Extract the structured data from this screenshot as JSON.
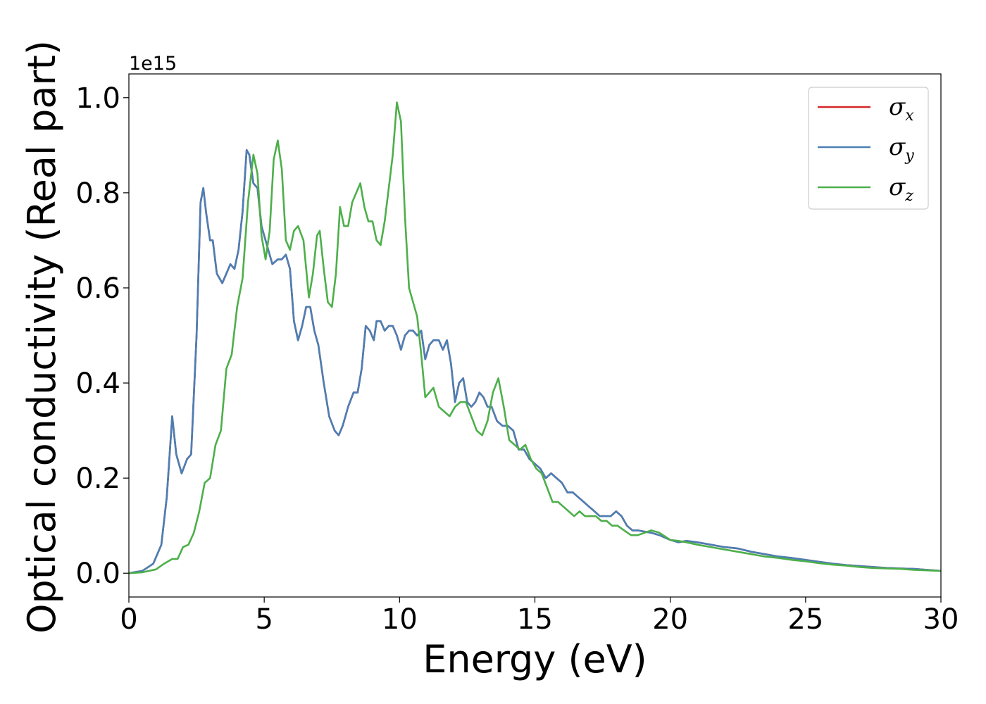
{
  "chart_data": {
    "type": "line",
    "xlabel": "Energy (eV)",
    "ylabel": "Optical conductivity (Real part)",
    "y_offset_label": "1e15",
    "xlim": [
      0,
      30
    ],
    "ylim": [
      -0.05,
      1.05
    ],
    "xticks": [
      0,
      5,
      10,
      15,
      20,
      25,
      30
    ],
    "xtick_labels": [
      "0",
      "5",
      "10",
      "15",
      "20",
      "25",
      "30"
    ],
    "yticks": [
      0.0,
      0.2,
      0.4,
      0.6,
      0.8,
      1.0
    ],
    "ytick_labels": [
      "0.0",
      "0.2",
      "0.4",
      "0.6",
      "0.8",
      "1.0"
    ],
    "grid": false,
    "legend_position": "top-right",
    "series": [
      {
        "name": "σ",
        "subscript": "x",
        "color": "#d62728",
        "x": [
          0,
          0.5,
          0.9,
          1.2,
          1.4,
          1.6,
          1.75,
          1.95,
          2.15,
          2.3,
          2.5,
          2.65,
          2.75,
          2.85,
          3.0,
          3.1,
          3.25,
          3.45,
          3.6,
          3.75,
          3.9,
          4.05,
          4.2,
          4.35,
          4.45,
          4.6,
          4.75,
          4.9,
          5.1,
          5.3,
          5.5,
          5.65,
          5.8,
          5.95,
          6.1,
          6.25,
          6.4,
          6.55,
          6.7,
          6.85,
          7.0,
          7.2,
          7.4,
          7.6,
          7.75,
          7.9,
          8.1,
          8.3,
          8.45,
          8.6,
          8.75,
          8.9,
          9.05,
          9.15,
          9.3,
          9.45,
          9.6,
          9.75,
          9.9,
          10.05,
          10.2,
          10.35,
          10.5,
          10.65,
          10.8,
          10.95,
          11.1,
          11.25,
          11.45,
          11.6,
          11.75,
          11.9,
          12.05,
          12.2,
          12.35,
          12.5,
          12.65,
          12.8,
          12.95,
          13.1,
          13.25,
          13.4,
          13.6,
          13.8,
          14.0,
          14.2,
          14.4,
          14.6,
          14.8,
          15.0,
          15.2,
          15.4,
          15.6,
          15.8,
          16.0,
          16.2,
          16.4,
          16.6,
          16.8,
          17.0,
          17.2,
          17.4,
          17.6,
          17.8,
          18.0,
          18.2,
          18.4,
          18.6,
          18.8,
          19.0,
          19.3,
          19.6,
          20.0,
          20.3,
          20.6,
          21.0,
          21.5,
          22.0,
          22.5,
          23.0,
          23.5,
          24.0,
          24.5,
          25.0,
          25.5,
          26.0,
          26.5,
          27.0,
          27.5,
          28.0,
          28.5,
          29.0,
          29.5,
          30.0
        ],
        "y": [
          0.0,
          0.005,
          0.02,
          0.06,
          0.16,
          0.33,
          0.25,
          0.21,
          0.24,
          0.25,
          0.5,
          0.78,
          0.81,
          0.76,
          0.7,
          0.7,
          0.63,
          0.61,
          0.63,
          0.65,
          0.64,
          0.68,
          0.76,
          0.89,
          0.88,
          0.82,
          0.81,
          0.73,
          0.69,
          0.65,
          0.66,
          0.66,
          0.67,
          0.64,
          0.53,
          0.49,
          0.52,
          0.56,
          0.56,
          0.51,
          0.48,
          0.4,
          0.33,
          0.3,
          0.29,
          0.31,
          0.35,
          0.38,
          0.38,
          0.43,
          0.52,
          0.51,
          0.49,
          0.53,
          0.53,
          0.51,
          0.52,
          0.52,
          0.5,
          0.47,
          0.5,
          0.51,
          0.51,
          0.5,
          0.51,
          0.45,
          0.48,
          0.49,
          0.49,
          0.47,
          0.49,
          0.44,
          0.36,
          0.4,
          0.41,
          0.36,
          0.35,
          0.36,
          0.38,
          0.37,
          0.35,
          0.35,
          0.32,
          0.31,
          0.31,
          0.3,
          0.26,
          0.26,
          0.24,
          0.23,
          0.22,
          0.2,
          0.21,
          0.2,
          0.19,
          0.17,
          0.17,
          0.16,
          0.15,
          0.14,
          0.13,
          0.12,
          0.12,
          0.12,
          0.13,
          0.12,
          0.1,
          0.09,
          0.09,
          0.088,
          0.085,
          0.08,
          0.07,
          0.065,
          0.068,
          0.065,
          0.06,
          0.055,
          0.052,
          0.045,
          0.04,
          0.035,
          0.032,
          0.028,
          0.024,
          0.02,
          0.017,
          0.015,
          0.013,
          0.011,
          0.01,
          0.009,
          0.007,
          0.005
        ]
      },
      {
        "name": "σ",
        "subscript": "y",
        "color": "#4a7fb5",
        "x": [
          0,
          0.5,
          0.9,
          1.2,
          1.4,
          1.6,
          1.75,
          1.95,
          2.15,
          2.3,
          2.5,
          2.65,
          2.75,
          2.85,
          3.0,
          3.1,
          3.25,
          3.45,
          3.6,
          3.75,
          3.9,
          4.05,
          4.2,
          4.35,
          4.45,
          4.6,
          4.75,
          4.9,
          5.1,
          5.3,
          5.5,
          5.65,
          5.8,
          5.95,
          6.1,
          6.25,
          6.4,
          6.55,
          6.7,
          6.85,
          7.0,
          7.2,
          7.4,
          7.6,
          7.75,
          7.9,
          8.1,
          8.3,
          8.45,
          8.6,
          8.75,
          8.9,
          9.05,
          9.15,
          9.3,
          9.45,
          9.6,
          9.75,
          9.9,
          10.05,
          10.2,
          10.35,
          10.5,
          10.65,
          10.8,
          10.95,
          11.1,
          11.25,
          11.45,
          11.6,
          11.75,
          11.9,
          12.05,
          12.2,
          12.35,
          12.5,
          12.65,
          12.8,
          12.95,
          13.1,
          13.25,
          13.4,
          13.6,
          13.8,
          14.0,
          14.2,
          14.4,
          14.6,
          14.8,
          15.0,
          15.2,
          15.4,
          15.6,
          15.8,
          16.0,
          16.2,
          16.4,
          16.6,
          16.8,
          17.0,
          17.2,
          17.4,
          17.6,
          17.8,
          18.0,
          18.2,
          18.4,
          18.6,
          18.8,
          19.0,
          19.3,
          19.6,
          20.0,
          20.3,
          20.6,
          21.0,
          21.5,
          22.0,
          22.5,
          23.0,
          23.5,
          24.0,
          24.5,
          25.0,
          25.5,
          26.0,
          26.5,
          27.0,
          27.5,
          28.0,
          28.5,
          29.0,
          29.5,
          30.0
        ],
        "y": [
          0.0,
          0.005,
          0.02,
          0.06,
          0.16,
          0.33,
          0.25,
          0.21,
          0.24,
          0.25,
          0.5,
          0.78,
          0.81,
          0.76,
          0.7,
          0.7,
          0.63,
          0.61,
          0.63,
          0.65,
          0.64,
          0.68,
          0.76,
          0.89,
          0.88,
          0.82,
          0.81,
          0.73,
          0.69,
          0.65,
          0.66,
          0.66,
          0.67,
          0.64,
          0.53,
          0.49,
          0.52,
          0.56,
          0.56,
          0.51,
          0.48,
          0.4,
          0.33,
          0.3,
          0.29,
          0.31,
          0.35,
          0.38,
          0.38,
          0.43,
          0.52,
          0.51,
          0.49,
          0.53,
          0.53,
          0.51,
          0.52,
          0.52,
          0.5,
          0.47,
          0.5,
          0.51,
          0.51,
          0.5,
          0.51,
          0.45,
          0.48,
          0.49,
          0.49,
          0.47,
          0.49,
          0.44,
          0.36,
          0.4,
          0.41,
          0.36,
          0.35,
          0.36,
          0.38,
          0.37,
          0.35,
          0.35,
          0.32,
          0.31,
          0.31,
          0.3,
          0.26,
          0.26,
          0.24,
          0.23,
          0.22,
          0.2,
          0.21,
          0.2,
          0.19,
          0.17,
          0.17,
          0.16,
          0.15,
          0.14,
          0.13,
          0.12,
          0.12,
          0.12,
          0.13,
          0.12,
          0.1,
          0.09,
          0.09,
          0.088,
          0.085,
          0.08,
          0.07,
          0.065,
          0.068,
          0.065,
          0.06,
          0.055,
          0.052,
          0.045,
          0.04,
          0.035,
          0.032,
          0.028,
          0.024,
          0.02,
          0.017,
          0.015,
          0.013,
          0.011,
          0.01,
          0.009,
          0.007,
          0.005
        ]
      },
      {
        "name": "σ",
        "subscript": "z",
        "color": "#4daf4a",
        "x": [
          0,
          0.5,
          1.0,
          1.3,
          1.6,
          1.8,
          2.0,
          2.2,
          2.4,
          2.6,
          2.8,
          3.0,
          3.2,
          3.4,
          3.6,
          3.8,
          4.0,
          4.2,
          4.4,
          4.6,
          4.75,
          4.9,
          5.05,
          5.2,
          5.35,
          5.5,
          5.65,
          5.8,
          5.95,
          6.1,
          6.25,
          6.45,
          6.65,
          6.8,
          6.95,
          7.05,
          7.2,
          7.35,
          7.5,
          7.65,
          7.8,
          7.95,
          8.1,
          8.25,
          8.4,
          8.55,
          8.7,
          8.85,
          9.0,
          9.15,
          9.3,
          9.45,
          9.6,
          9.75,
          9.9,
          10.05,
          10.2,
          10.35,
          10.5,
          10.65,
          10.8,
          10.95,
          11.1,
          11.25,
          11.45,
          11.65,
          11.85,
          12.05,
          12.25,
          12.45,
          12.65,
          12.85,
          13.05,
          13.25,
          13.45,
          13.65,
          13.85,
          14.05,
          14.25,
          14.45,
          14.65,
          14.85,
          15.05,
          15.25,
          15.45,
          15.65,
          15.85,
          16.05,
          16.25,
          16.45,
          16.65,
          16.85,
          17.05,
          17.25,
          17.45,
          17.65,
          17.85,
          18.05,
          18.3,
          18.55,
          18.8,
          19.05,
          19.3,
          19.6,
          20.0,
          20.3,
          20.6,
          21.0,
          21.5,
          22.0,
          22.5,
          23.0,
          23.5,
          24.0,
          24.5,
          25.0,
          25.5,
          26.0,
          26.5,
          27.0,
          27.5,
          28.0,
          28.5,
          29.0,
          29.5,
          30.0
        ],
        "y": [
          0.0,
          0.002,
          0.008,
          0.02,
          0.03,
          0.03,
          0.055,
          0.06,
          0.085,
          0.13,
          0.19,
          0.2,
          0.27,
          0.3,
          0.43,
          0.46,
          0.56,
          0.62,
          0.78,
          0.88,
          0.84,
          0.71,
          0.66,
          0.72,
          0.87,
          0.91,
          0.85,
          0.7,
          0.68,
          0.72,
          0.73,
          0.7,
          0.58,
          0.63,
          0.71,
          0.72,
          0.64,
          0.57,
          0.56,
          0.63,
          0.77,
          0.73,
          0.73,
          0.78,
          0.8,
          0.82,
          0.77,
          0.74,
          0.74,
          0.7,
          0.69,
          0.74,
          0.81,
          0.88,
          0.99,
          0.95,
          0.75,
          0.6,
          0.57,
          0.54,
          0.46,
          0.37,
          0.38,
          0.39,
          0.35,
          0.34,
          0.33,
          0.35,
          0.36,
          0.36,
          0.33,
          0.3,
          0.29,
          0.32,
          0.38,
          0.41,
          0.35,
          0.28,
          0.27,
          0.26,
          0.27,
          0.24,
          0.22,
          0.21,
          0.18,
          0.15,
          0.15,
          0.14,
          0.13,
          0.12,
          0.13,
          0.12,
          0.12,
          0.12,
          0.11,
          0.11,
          0.1,
          0.1,
          0.09,
          0.08,
          0.08,
          0.085,
          0.09,
          0.085,
          0.07,
          0.068,
          0.065,
          0.06,
          0.055,
          0.05,
          0.045,
          0.04,
          0.035,
          0.032,
          0.028,
          0.025,
          0.021,
          0.018,
          0.016,
          0.013,
          0.011,
          0.01,
          0.009,
          0.007,
          0.006,
          0.005
        ]
      }
    ]
  }
}
